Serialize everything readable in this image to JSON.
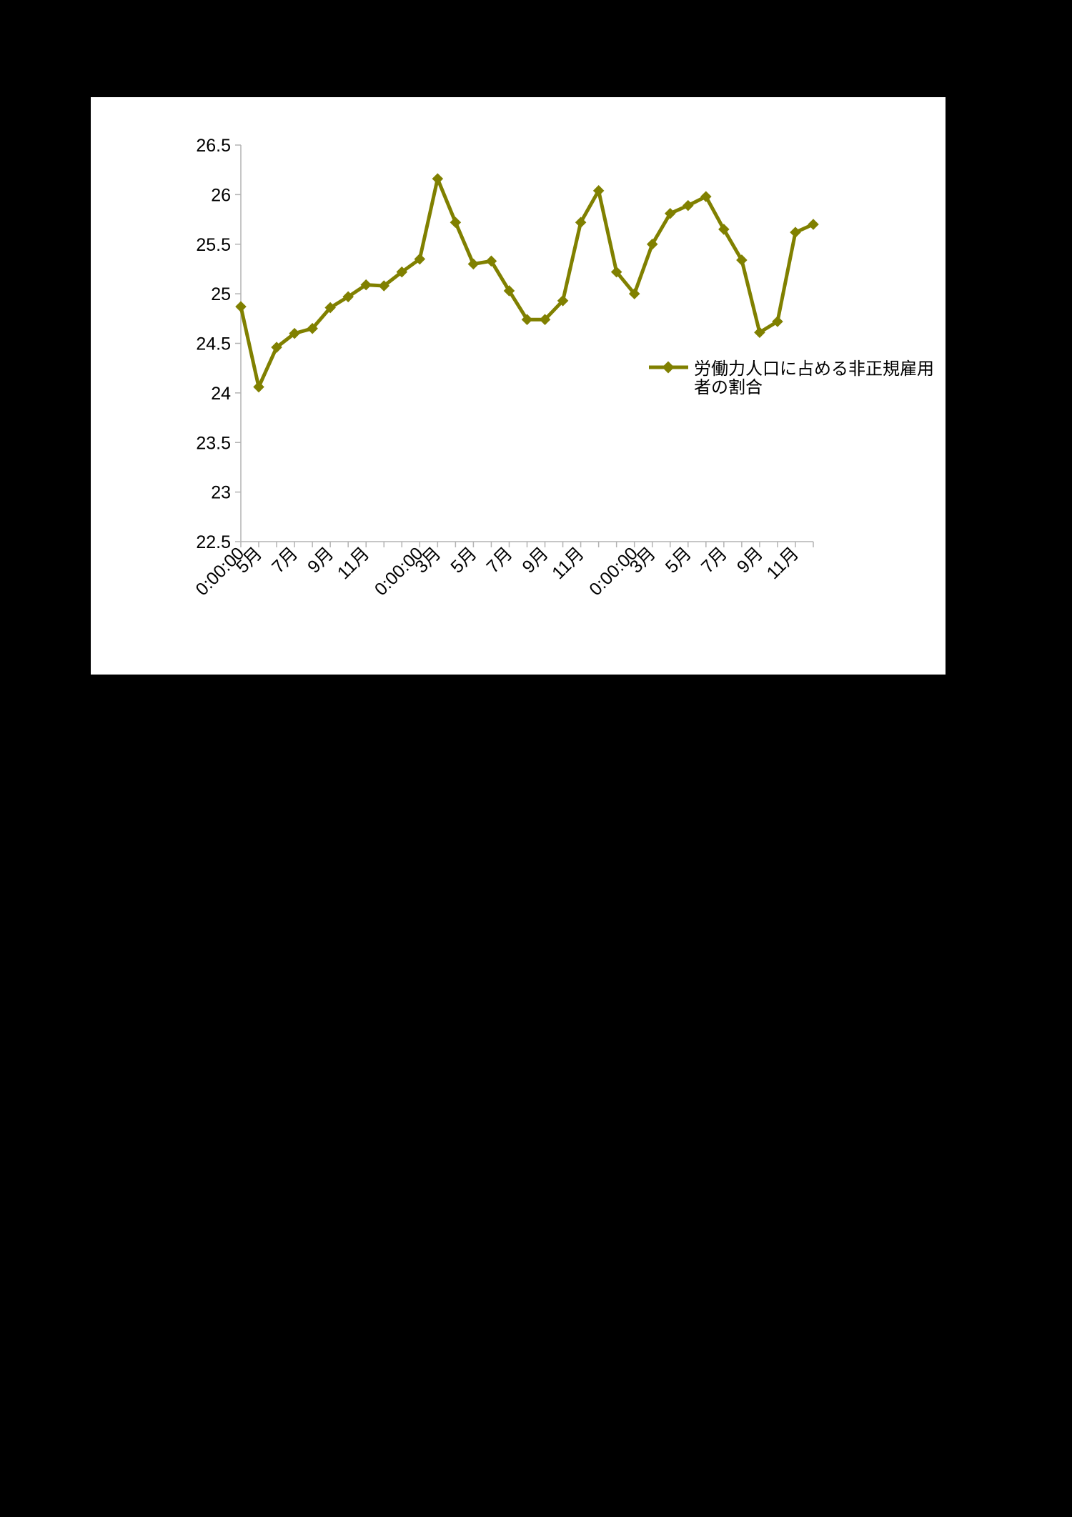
{
  "chart_data": {
    "type": "line",
    "title": "",
    "xlabel": "",
    "ylabel": "",
    "ylim": [
      22.5,
      26.5
    ],
    "yticks": [
      "26.5",
      "26",
      "25.5",
      "25",
      "24.5",
      "24",
      "23.5",
      "23",
      "22.5"
    ],
    "ytick_values": [
      26.5,
      26,
      25.5,
      25,
      24.5,
      24,
      23.5,
      23,
      22.5
    ],
    "xtick_labels": [
      "0:00:00",
      "5月",
      "7月",
      "9月",
      "11月",
      "0:00:00",
      "3月",
      "5月",
      "7月",
      "9月",
      "11月",
      "0:00:00",
      "3月",
      "5月",
      "7月",
      "9月",
      "11月"
    ],
    "xtick_positions": [
      0,
      1,
      3,
      5,
      7,
      10,
      11,
      13,
      15,
      17,
      19,
      22,
      23,
      25,
      27,
      29,
      31
    ],
    "point_count": 33,
    "grid": false,
    "legend": "right",
    "series": [
      {
        "name": "労働力人口に占める非正規雇用者の割合",
        "color": "#808000",
        "marker": "diamond",
        "values": [
          24.87,
          24.06,
          24.46,
          24.6,
          24.65,
          24.86,
          24.97,
          25.09,
          25.08,
          25.22,
          25.35,
          26.16,
          25.72,
          25.3,
          25.33,
          25.03,
          24.74,
          24.74,
          24.93,
          25.72,
          26.04,
          25.22,
          25.0,
          25.5,
          25.81,
          25.89,
          25.98,
          25.65,
          25.34,
          24.61,
          24.72,
          25.62,
          25.7
        ]
      }
    ]
  }
}
